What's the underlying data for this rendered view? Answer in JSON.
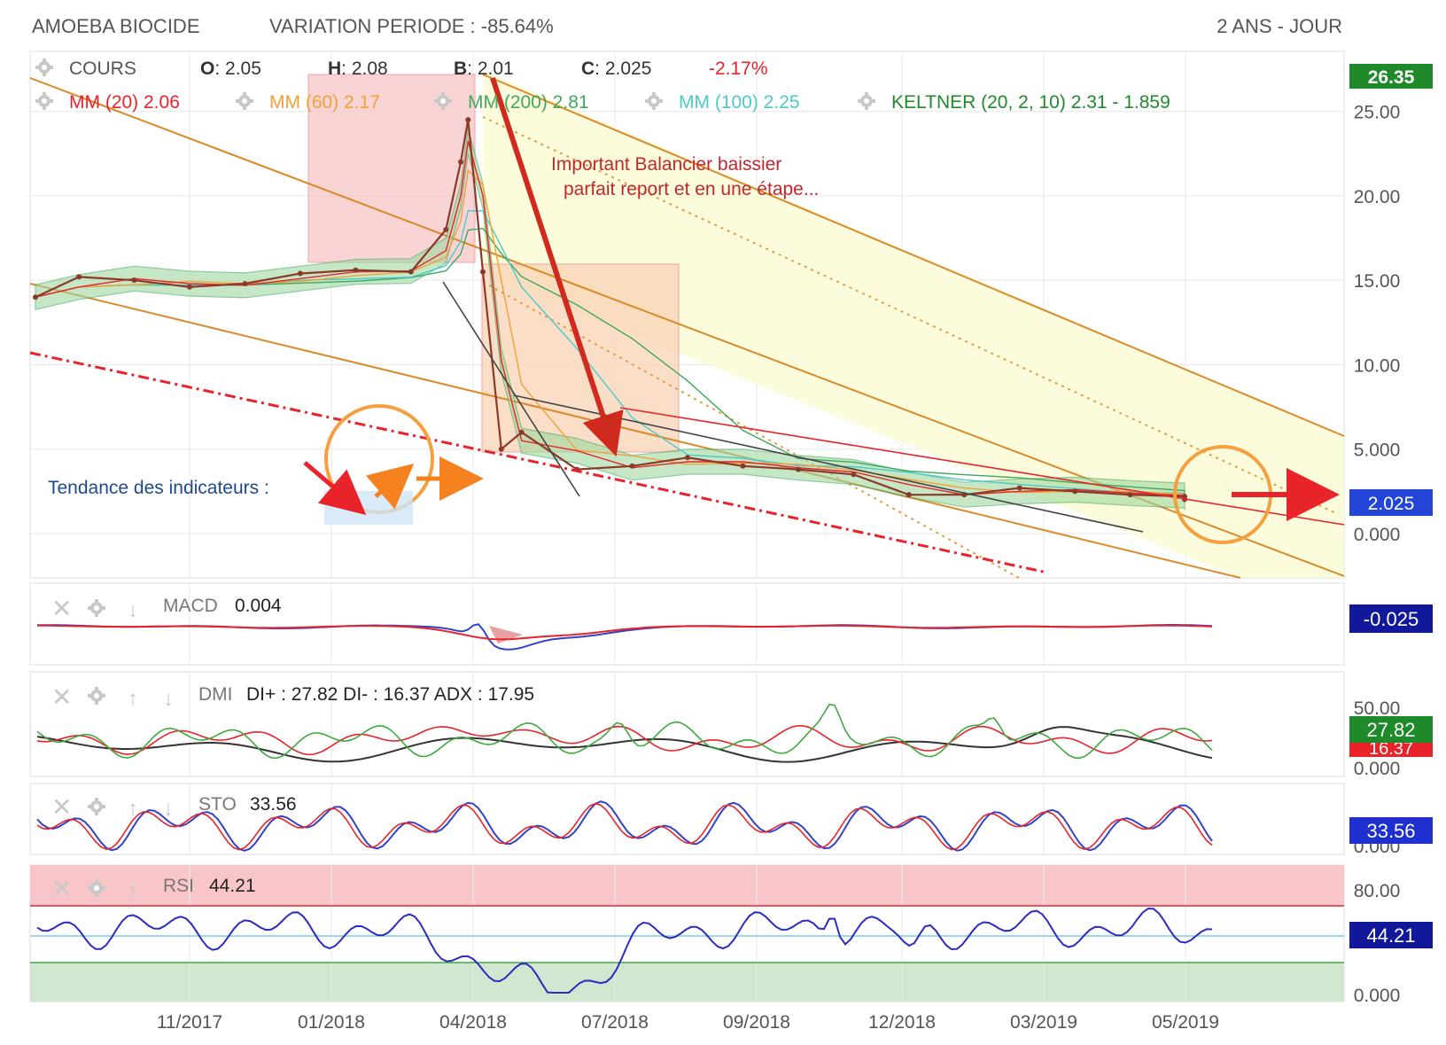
{
  "header": {
    "title": "AMOEBA BIOCIDE",
    "variation": "VARIATION PERIODE : -85.64%",
    "period": "2 ANS - JOUR"
  },
  "price_panel": {
    "cours_label": "COURS",
    "ohlc": [
      {
        "key": "O",
        "val": ": 2.05"
      },
      {
        "key": "H",
        "val": ": 2.08"
      },
      {
        "key": "B",
        "val": ": 2.01"
      },
      {
        "key": "C",
        "val": ": 2.025"
      }
    ],
    "change": "-2.17%",
    "indicators": [
      {
        "label": "MM (20) 2.06",
        "color": "#e8232a"
      },
      {
        "label": "MM (60) 2.17",
        "color": "#f2a03a"
      },
      {
        "label": "MM (200) 2.81",
        "color": "#3fa95e"
      },
      {
        "label": "MM (100) 2.25",
        "color": "#4dc9c9"
      },
      {
        "label": "KELTNER (20, 2, 10) 2.31 - 1.859",
        "color": "#1f8a2a"
      }
    ],
    "last_high_badge": "26.35",
    "last_close_badge": "2.025",
    "annotation_lines": [
      "Important Balancier baissier",
      "parfait report et en une étape..."
    ],
    "trend_label": "Tendance des indicateurs :"
  },
  "macd_panel": {
    "label": "MACD",
    "value": "0.004",
    "badge": "-0.025"
  },
  "dmi_panel": {
    "label": "DMI",
    "value": "DI+ : 27.82 DI- : 16.37 ADX : 17.95",
    "badge": "27.82",
    "badge2": "16.37",
    "ticks": [
      "50.00",
      "0.000"
    ]
  },
  "sto_panel": {
    "label": "STO",
    "value": "33.56",
    "badge": "33.56",
    "ticks": [
      "0.000"
    ]
  },
  "rsi_panel": {
    "label": "RSI",
    "value": "44.21",
    "badge": "44.21",
    "ticks": [
      "80.00",
      "0.000"
    ]
  },
  "chart_data": {
    "type": "line",
    "title": "AMOEBA BIOCIDE",
    "x_ticks": [
      "11/2017",
      "01/2018",
      "04/2018",
      "07/2018",
      "09/2018",
      "12/2018",
      "03/2019",
      "05/2019"
    ],
    "y_ticks": [
      "25.00",
      "20.00",
      "15.00",
      "10.00",
      "5.000",
      "0.000"
    ],
    "ylim": [
      0,
      27.5
    ],
    "series": [
      {
        "x": [
          "2017-08",
          "2017-09",
          "2017-10",
          "2017-11",
          "2017-12",
          "2018-01",
          "2018-02",
          "2018-03-01",
          "2018-03-20",
          "2018-03-28",
          "2018-04-02",
          "2018-04-10",
          "2018-04-20",
          "2018-05",
          "2018-06",
          "2018-07",
          "2018-08",
          "2018-09",
          "2018-10",
          "2018-11",
          "2018-12",
          "2019-01",
          "2019-02",
          "2019-03",
          "2019-04",
          "2019-05",
          "2019-06"
        ],
        "values": [
          14.0,
          15.2,
          15.0,
          14.6,
          14.8,
          15.4,
          15.6,
          15.5,
          18.0,
          22.0,
          24.5,
          15.5,
          5.0,
          6.0,
          3.8,
          4.0,
          4.5,
          4.0,
          3.8,
          3.5,
          2.3,
          2.3,
          2.7,
          2.5,
          2.3,
          2.2,
          2.025
        ]
      }
    ]
  }
}
